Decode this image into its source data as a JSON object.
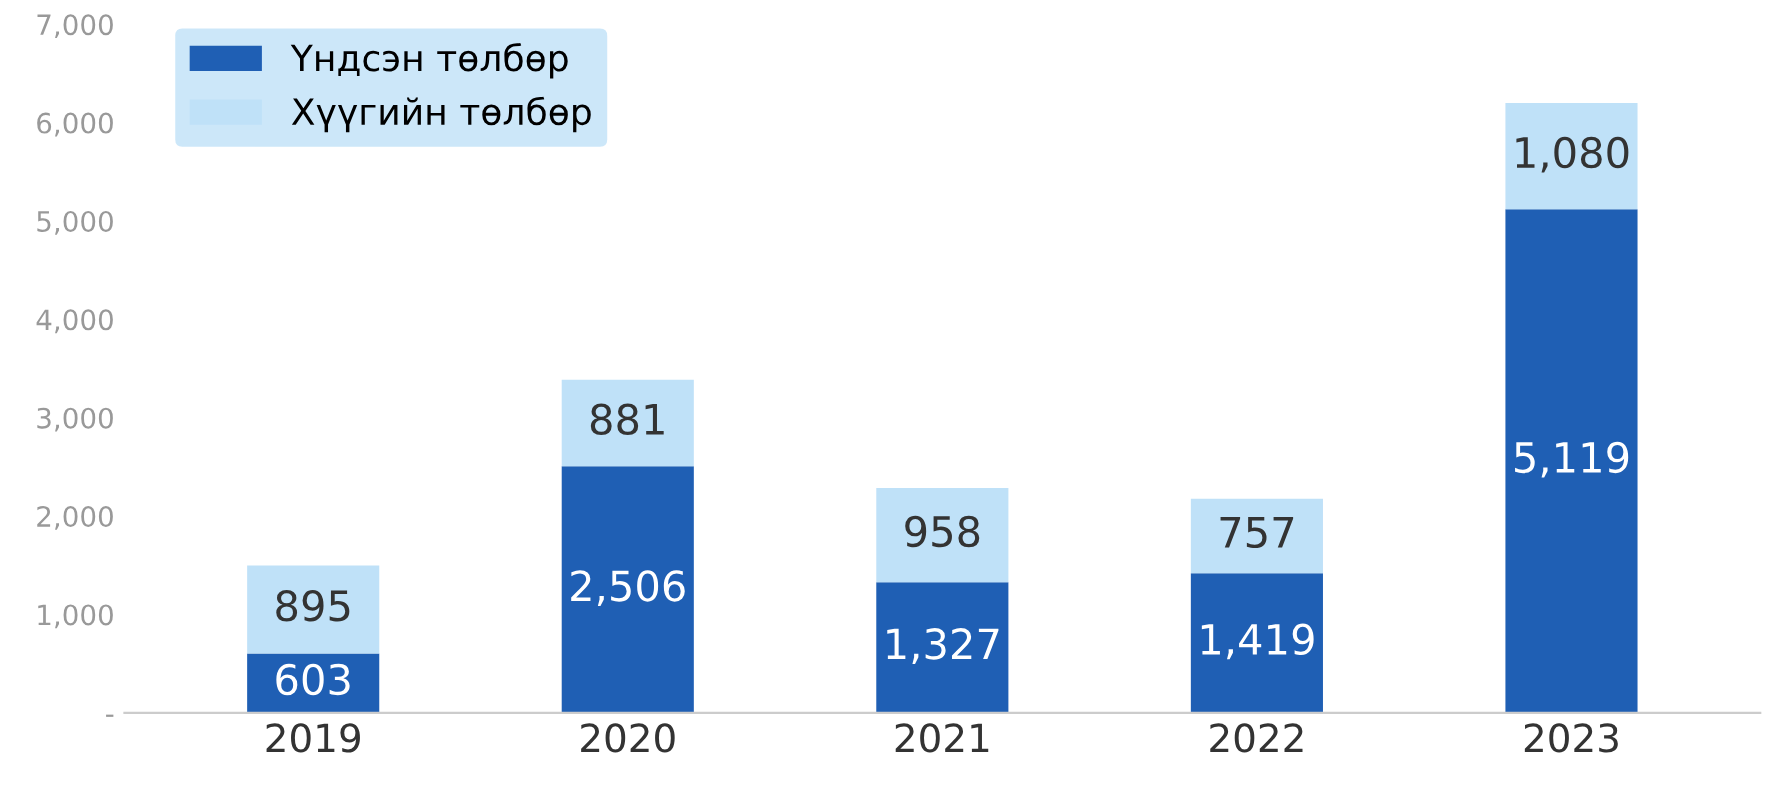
{
  "chart_data": {
    "type": "bar",
    "stacked": true,
    "categories": [
      "2019",
      "2020",
      "2021",
      "2022",
      "2023"
    ],
    "series": [
      {
        "name": "Үндсэн төлбөр",
        "color": "#1f5fb4",
        "values": [
          603,
          2506,
          1327,
          1419,
          5119
        ]
      },
      {
        "name": "Хүүгийн төлбөр",
        "color": "#bfe1f8",
        "values": [
          895,
          881,
          958,
          757,
          1080
        ]
      }
    ],
    "ylim": [
      0,
      7000
    ],
    "yticks": [
      {
        "value": 0,
        "label": "-"
      },
      {
        "value": 1000,
        "label": "1,000"
      },
      {
        "value": 2000,
        "label": "2,000"
      },
      {
        "value": 3000,
        "label": "3,000"
      },
      {
        "value": 4000,
        "label": "4,000"
      },
      {
        "value": 5000,
        "label": "5,000"
      },
      {
        "value": 6000,
        "label": "6,000"
      },
      {
        "value": 7000,
        "label": "7,000"
      }
    ],
    "value_labels": [
      [
        "603",
        "2,506",
        "1,327",
        "1,419",
        "5,119"
      ],
      [
        "895",
        "881",
        "958",
        "757",
        "1,080"
      ]
    ],
    "legend": "top left",
    "grid": false
  }
}
